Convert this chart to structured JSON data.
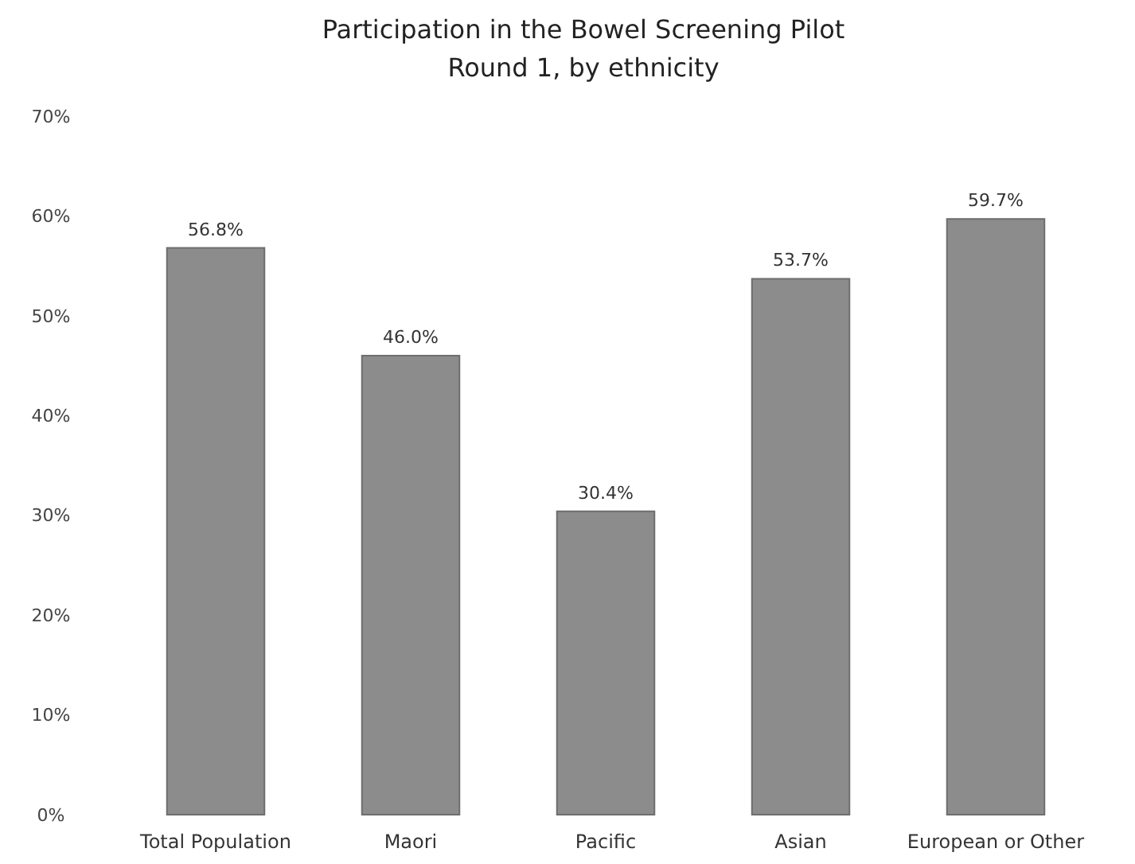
{
  "chart_data": {
    "type": "bar",
    "title": "Participation in the Bowel Screening Pilot",
    "subtitle": "Round 1, by ethnicity",
    "categories": [
      "Total Population",
      "Maori",
      "Pacific",
      "Asian",
      "European or Other"
    ],
    "values": [
      56.8,
      46.0,
      30.4,
      53.7,
      59.7
    ],
    "value_labels": [
      "56.8%",
      "46.0%",
      "30.4%",
      "53.7%",
      "59.7%"
    ],
    "color": "#8c8c8c",
    "ylim": [
      0,
      70
    ],
    "yticks": [
      {
        "value": 0,
        "label": "0%"
      },
      {
        "value": 10,
        "label": "10%"
      },
      {
        "value": 20,
        "label": "20%"
      },
      {
        "value": 30,
        "label": "30%"
      },
      {
        "value": 40,
        "label": "40%"
      },
      {
        "value": 50,
        "label": "50%"
      },
      {
        "value": 60,
        "label": "60%"
      },
      {
        "value": 70,
        "label": "70%"
      }
    ],
    "grid": false
  }
}
